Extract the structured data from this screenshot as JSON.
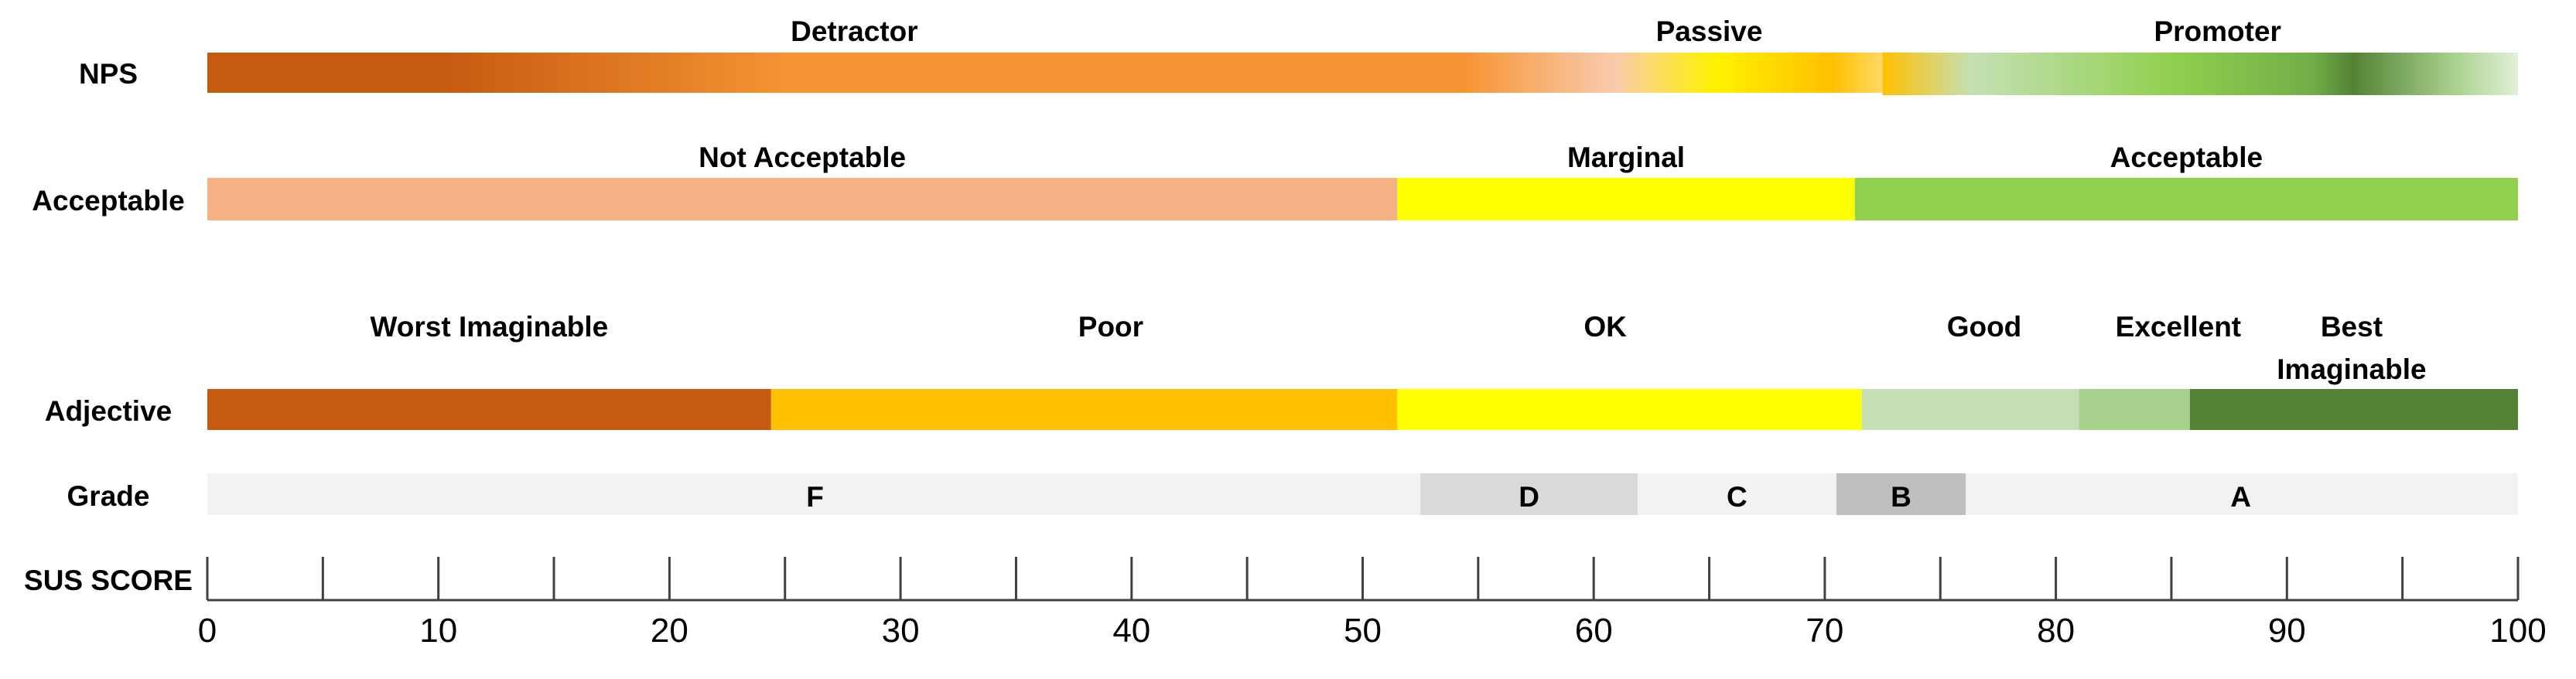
{
  "chart_data": {
    "type": "bar",
    "xlim": [
      0,
      100
    ],
    "x_ticks_major": [
      0,
      10,
      20,
      30,
      40,
      50,
      60,
      70,
      80,
      90,
      100
    ],
    "x_ticks_minor_step": 5,
    "rows": [
      {
        "label": "NPS",
        "style": "gradient",
        "segments": [
          {
            "label": "Detractor",
            "start": 0,
            "end": 72.5
          },
          {
            "label": "Passive",
            "start": 56,
            "end": 72.5
          },
          {
            "label": "Promoter",
            "start": 72.5,
            "end": 100
          }
        ],
        "labels": [
          {
            "text": "Detractor",
            "x": 28
          },
          {
            "text": "Passive",
            "x": 65
          },
          {
            "text": "Promoter",
            "x": 87
          }
        ]
      },
      {
        "label": "Acceptable",
        "style": "solid",
        "segments": [
          {
            "label": "Not Acceptable",
            "start": 0,
            "end": 51.5,
            "color": "#F4B183"
          },
          {
            "label": "Marginal",
            "start": 51.5,
            "end": 71.3,
            "color": "#FFFF00"
          },
          {
            "label": "Acceptable",
            "start": 71.3,
            "end": 100,
            "color": "#92D050"
          }
        ]
      },
      {
        "label": "Adjective",
        "style": "solid",
        "segments": [
          {
            "label": "Worst Imaginable",
            "start": 0,
            "end": 24.4,
            "color": "#C55A11",
            "label_x": 12.2
          },
          {
            "label": "Poor",
            "start": 24.4,
            "end": 51.5,
            "color": "#FFC000",
            "label_x": 39.1
          },
          {
            "label": "OK",
            "start": 51.5,
            "end": 71.6,
            "color": "#FFFF00",
            "label_x": 60.5
          },
          {
            "label": "Good",
            "start": 71.6,
            "end": 81.0,
            "color": "#C5E0B4",
            "label_x": 76.9
          },
          {
            "label": "Excellent",
            "start": 81.0,
            "end": 85.8,
            "color": "#A9D18E",
            "label_x": 85.3
          },
          {
            "label": "Best Imaginable",
            "start": 85.8,
            "end": 100,
            "color": "#548235",
            "label_x": 92.8
          }
        ]
      },
      {
        "label": "Grade",
        "style": "solid",
        "background": "#F2F2F2",
        "segments": [
          {
            "label": "F",
            "start": 0,
            "end": 52.5,
            "color": "#F2F2F2",
            "label_x": 26.3
          },
          {
            "label": "D",
            "start": 52.5,
            "end": 61.9,
            "color": "#D9D9D9",
            "label_x": 57.2
          },
          {
            "label": "C",
            "start": 61.9,
            "end": 70.5,
            "color": "#F2F2F2",
            "label_x": 66.2
          },
          {
            "label": "B",
            "start": 70.5,
            "end": 76.1,
            "color": "#BFBFBF",
            "label_x": 73.3
          },
          {
            "label": "A",
            "start": 76.1,
            "end": 100,
            "color": "#F2F2F2",
            "label_x": 88.0
          }
        ]
      },
      {
        "label": "SUS SCORE",
        "style": "axis"
      }
    ]
  }
}
